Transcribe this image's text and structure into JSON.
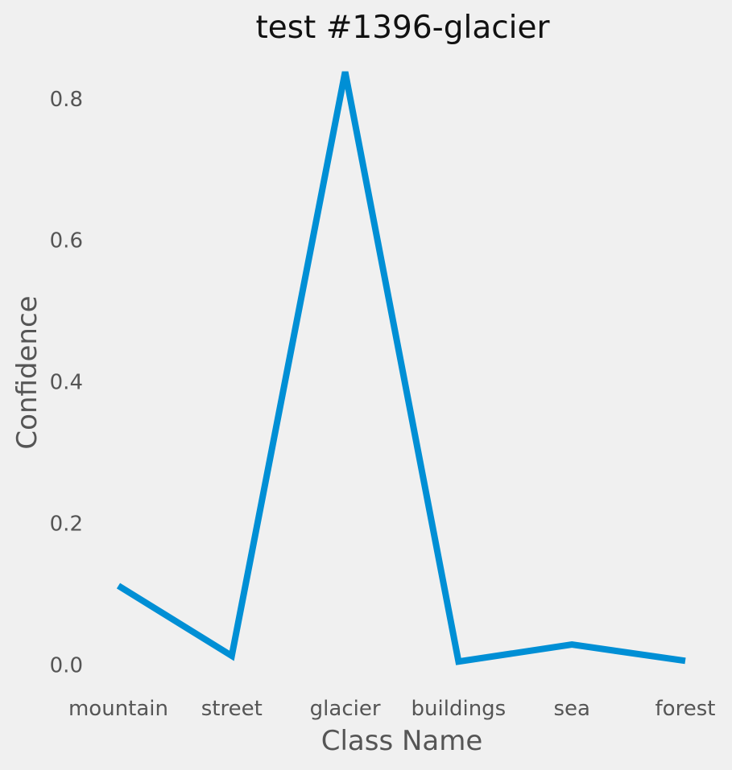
{
  "chart_data": {
    "type": "line",
    "title": "test #1396-glacier",
    "xlabel": "Class Name",
    "ylabel": "Confidence",
    "categories": [
      "mountain",
      "street",
      "glacier",
      "buildings",
      "sea",
      "forest"
    ],
    "series": [
      {
        "name": "Confidence",
        "values": [
          0.112,
          0.013,
          0.838,
          0.005,
          0.029,
          0.006
        ],
        "color": "#008fd5"
      }
    ],
    "yticks": [
      0.0,
      0.2,
      0.4,
      0.6,
      0.8
    ],
    "ytick_labels": [
      "0.0",
      "0.2",
      "0.4",
      "0.6",
      "0.8"
    ],
    "ylim": [
      -0.038,
      0.86
    ],
    "grid": false,
    "background_color": "#f0f0f0"
  }
}
